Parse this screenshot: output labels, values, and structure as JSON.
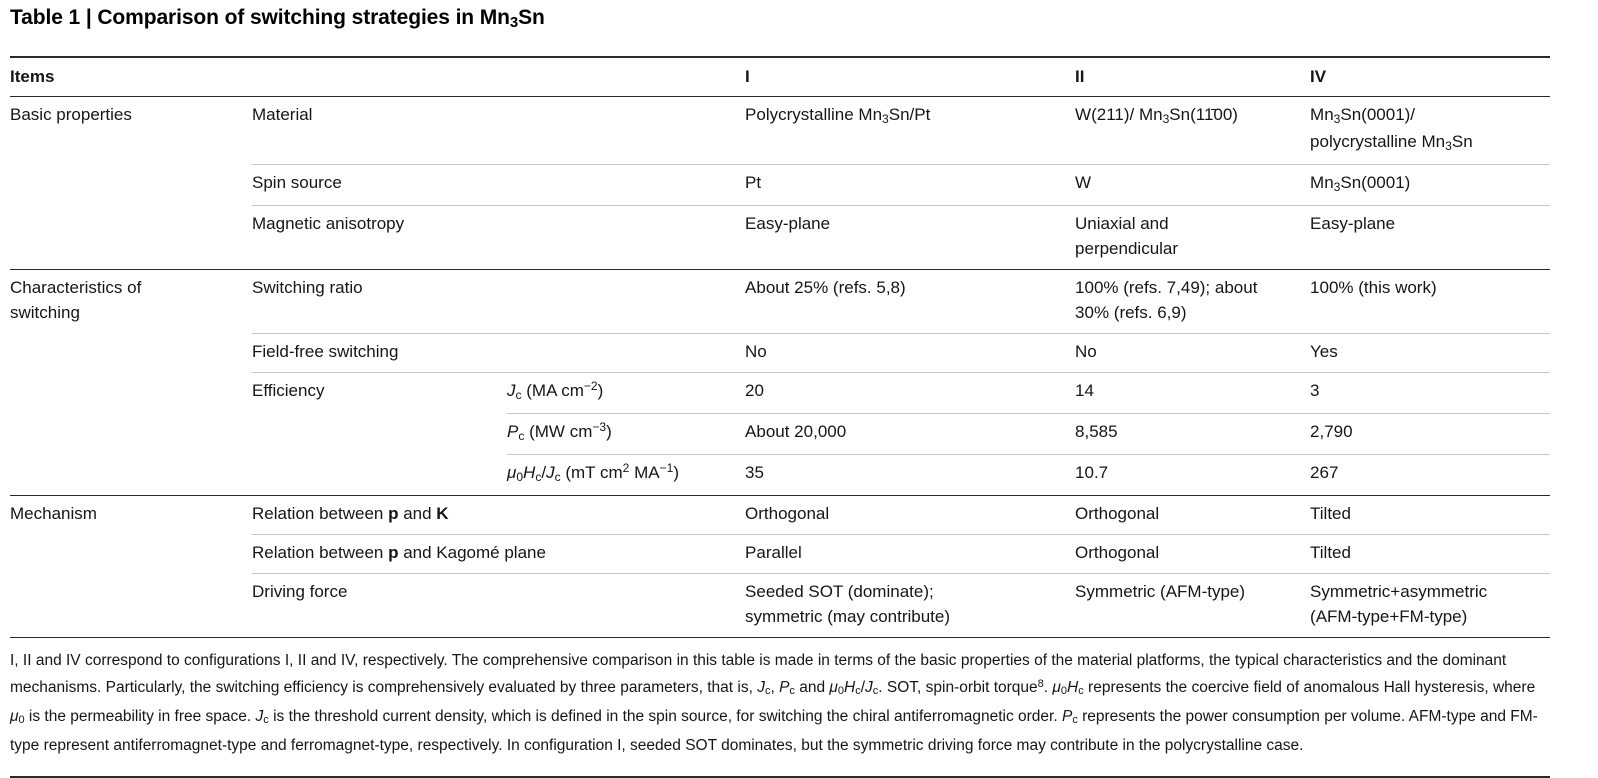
{
  "title": {
    "segments": [
      {
        "t": "Table 1 | Comparison of switching strategies in Mn"
      },
      {
        "t": "3",
        "s": "sub"
      },
      {
        "t": "Sn"
      }
    ]
  },
  "table": {
    "header": {
      "items": "Items",
      "I": "I",
      "II": "II",
      "IV": "IV"
    },
    "groups": {
      "basic": {
        "label": "Basic properties"
      },
      "characteristics": {
        "label": "Characteristics of\nswitching"
      },
      "mechanism": {
        "label": "Mechanism"
      }
    },
    "rows": {
      "material": {
        "label": [
          {
            "t": "Material"
          }
        ],
        "I": [
          {
            "t": "Polycrystalline Mn"
          },
          {
            "t": "3",
            "s": "sub"
          },
          {
            "t": "Sn/Pt"
          }
        ],
        "II": [
          {
            "t": "W(211)/ Mn"
          },
          {
            "t": "3",
            "s": "sub"
          },
          {
            "t": "Sn(11̄00)"
          }
        ],
        "IV": [
          {
            "t": "Mn"
          },
          {
            "t": "3",
            "s": "sub"
          },
          {
            "t": "Sn(0001)/\npolycrystalline Mn"
          },
          {
            "t": "3",
            "s": "sub"
          },
          {
            "t": "Sn"
          }
        ]
      },
      "spin_source": {
        "label": [
          {
            "t": "Spin source"
          }
        ],
        "I": [
          {
            "t": "Pt"
          }
        ],
        "II": [
          {
            "t": "W"
          }
        ],
        "IV": [
          {
            "t": "Mn"
          },
          {
            "t": "3",
            "s": "sub"
          },
          {
            "t": "Sn(0001)"
          }
        ]
      },
      "magnetic_anisotropy": {
        "label": [
          {
            "t": "Magnetic anisotropy"
          }
        ],
        "I": [
          {
            "t": "Easy-plane"
          }
        ],
        "II": [
          {
            "t": "Uniaxial and\nperpendicular"
          }
        ],
        "IV": [
          {
            "t": "Easy-plane"
          }
        ]
      },
      "switching_ratio": {
        "label": [
          {
            "t": "Switching ratio"
          }
        ],
        "I": [
          {
            "t": "About 25% (refs. 5,8)"
          }
        ],
        "II": [
          {
            "t": "100% (refs. 7,49); about\n30% (refs. 6,9)"
          }
        ],
        "IV": [
          {
            "t": "100% (this work)"
          }
        ]
      },
      "field_free": {
        "label": [
          {
            "t": "Field-free switching"
          }
        ],
        "I": [
          {
            "t": "No"
          }
        ],
        "II": [
          {
            "t": "No"
          }
        ],
        "IV": [
          {
            "t": "Yes"
          }
        ]
      },
      "efficiency": {
        "label": [
          {
            "t": "Efficiency"
          }
        ]
      },
      "jc": {
        "label": [
          {
            "t": "J",
            "s": "i"
          },
          {
            "t": "c",
            "s": "sub"
          },
          {
            "t": " (MA cm"
          },
          {
            "t": "−2",
            "s": "sup"
          },
          {
            "t": ")"
          }
        ],
        "I": [
          {
            "t": "20"
          }
        ],
        "II": [
          {
            "t": "14"
          }
        ],
        "IV": [
          {
            "t": "3"
          }
        ]
      },
      "pc": {
        "label": [
          {
            "t": "P",
            "s": "i"
          },
          {
            "t": "c",
            "s": "sub"
          },
          {
            "t": " (MW cm"
          },
          {
            "t": "−3",
            "s": "sup"
          },
          {
            "t": ")"
          }
        ],
        "I": [
          {
            "t": "About 20,000"
          }
        ],
        "II": [
          {
            "t": "8,585"
          }
        ],
        "IV": [
          {
            "t": "2,790"
          }
        ]
      },
      "muhc": {
        "label": [
          {
            "t": "μ",
            "s": "i"
          },
          {
            "t": "0",
            "s": "sub"
          },
          {
            "t": "H",
            "s": "i"
          },
          {
            "t": "c",
            "s": "sub"
          },
          {
            "t": "/"
          },
          {
            "t": "J",
            "s": "i"
          },
          {
            "t": "c",
            "s": "sub"
          },
          {
            "t": " (mT cm"
          },
          {
            "t": "2",
            "s": "sup"
          },
          {
            "t": " MA"
          },
          {
            "t": "−1",
            "s": "sup"
          },
          {
            "t": ")"
          }
        ],
        "I": [
          {
            "t": "35"
          }
        ],
        "II": [
          {
            "t": "10.7"
          }
        ],
        "IV": [
          {
            "t": "267"
          }
        ]
      },
      "relation_p_k": {
        "label": [
          {
            "t": "Relation between "
          },
          {
            "t": "p",
            "s": "b"
          },
          {
            "t": " and "
          },
          {
            "t": "K",
            "s": "b"
          }
        ],
        "I": [
          {
            "t": "Orthogonal"
          }
        ],
        "II": [
          {
            "t": "Orthogonal"
          }
        ],
        "IV": [
          {
            "t": "Tilted"
          }
        ]
      },
      "relation_p_kagome": {
        "label": [
          {
            "t": "Relation between "
          },
          {
            "t": "p",
            "s": "b"
          },
          {
            "t": " and Kagomé plane"
          }
        ],
        "I": [
          {
            "t": "Parallel"
          }
        ],
        "II": [
          {
            "t": "Orthogonal"
          }
        ],
        "IV": [
          {
            "t": "Tilted"
          }
        ]
      },
      "driving_force": {
        "label": [
          {
            "t": "Driving force"
          }
        ],
        "I": [
          {
            "t": "Seeded SOT (dominate);\nsymmetric (may contribute)"
          }
        ],
        "II": [
          {
            "t": "Symmetric (AFM-type)"
          }
        ],
        "IV": [
          {
            "t": "Symmetric+asymmetric\n(AFM-type+FM-type)"
          }
        ]
      }
    }
  },
  "footnote": {
    "segments": [
      {
        "t": "I, II and IV correspond to configurations I, II and IV, respectively. The comprehensive comparison in this table is made in terms of the basic properties of the material platforms, the typical characteristics and the dominant mechanisms. Particularly, the switching efficiency is comprehensively evaluated by three parameters, that is, "
      },
      {
        "t": "J",
        "s": "i"
      },
      {
        "t": "c",
        "s": "sub"
      },
      {
        "t": ", "
      },
      {
        "t": "P",
        "s": "i"
      },
      {
        "t": "c",
        "s": "sub"
      },
      {
        "t": " and "
      },
      {
        "t": "μ",
        "s": "i"
      },
      {
        "t": "0",
        "s": "sub"
      },
      {
        "t": "H",
        "s": "i"
      },
      {
        "t": "c",
        "s": "sub"
      },
      {
        "t": "/"
      },
      {
        "t": "J",
        "s": "i"
      },
      {
        "t": "c",
        "s": "sub"
      },
      {
        "t": ". SOT, spin-orbit torque"
      },
      {
        "t": "8",
        "s": "sup"
      },
      {
        "t": ". "
      },
      {
        "t": "μ",
        "s": "i"
      },
      {
        "t": "0",
        "s": "sub"
      },
      {
        "t": "H",
        "s": "i"
      },
      {
        "t": "c",
        "s": "sub"
      },
      {
        "t": " represents the coercive field of anomalous Hall hysteresis, where "
      },
      {
        "t": "μ",
        "s": "i"
      },
      {
        "t": "0",
        "s": "sub"
      },
      {
        "t": " is the permeability in free space. "
      },
      {
        "t": "J",
        "s": "i"
      },
      {
        "t": "c",
        "s": "sub"
      },
      {
        "t": " is the threshold current density, which is defined in the spin source, for switching the chiral antiferromagnetic order. "
      },
      {
        "t": "P",
        "s": "i"
      },
      {
        "t": "c",
        "s": "sub"
      },
      {
        "t": " represents the power consumption per volume. AFM-type and FM-type represent antiferromagnet-type and ferromagnet-type, respectively. In configuration I, seeded SOT dominates, but the symmetric driving force may contribute in the polycrystalline case."
      }
    ]
  }
}
